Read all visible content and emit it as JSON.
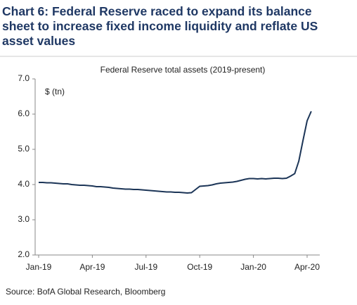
{
  "chart_data": {
    "type": "line",
    "title": [
      "Chart 6: Federal Reserve raced to expand its balance",
      "sheet to increase fixed income liquidity and reflate US",
      "asset values"
    ],
    "subtitle": "Federal Reserve total assets (2019-present)",
    "y_label": "$ (tn)",
    "source": "Source: BofA Global Research, Bloomberg",
    "categories": [
      "Jan-19",
      null,
      null,
      null,
      null,
      null,
      null,
      null,
      null,
      null,
      null,
      null,
      null,
      "Apr-19",
      null,
      null,
      null,
      null,
      null,
      null,
      null,
      null,
      null,
      null,
      null,
      null,
      "Jul-19",
      null,
      null,
      null,
      null,
      null,
      null,
      null,
      null,
      null,
      null,
      null,
      null,
      "Oct-19",
      null,
      null,
      null,
      null,
      null,
      null,
      null,
      null,
      null,
      null,
      null,
      null,
      "Jan-20",
      null,
      null,
      null,
      null,
      null,
      null,
      null,
      null,
      null,
      null,
      null,
      null,
      "Apr-20",
      null
    ],
    "series": [
      {
        "name": "Federal Reserve total assets",
        "color": "#1c3557",
        "values": [
          4.06,
          4.06,
          4.05,
          4.05,
          4.04,
          4.03,
          4.02,
          4.02,
          4.0,
          3.99,
          3.98,
          3.98,
          3.97,
          3.96,
          3.94,
          3.94,
          3.93,
          3.92,
          3.9,
          3.89,
          3.88,
          3.87,
          3.87,
          3.86,
          3.86,
          3.85,
          3.84,
          3.83,
          3.82,
          3.81,
          3.8,
          3.79,
          3.79,
          3.78,
          3.78,
          3.77,
          3.76,
          3.77,
          3.86,
          3.95,
          3.96,
          3.97,
          3.99,
          4.02,
          4.04,
          4.05,
          4.06,
          4.07,
          4.09,
          4.12,
          4.15,
          4.17,
          4.17,
          4.16,
          4.17,
          4.16,
          4.17,
          4.18,
          4.18,
          4.17,
          4.18,
          4.24,
          4.31,
          4.67,
          5.25,
          5.81,
          6.08
        ]
      }
    ],
    "ylim": [
      2,
      7
    ],
    "yticks": [
      {
        "value": 2,
        "label": "2.0"
      },
      {
        "value": 3,
        "label": "3.0"
      },
      {
        "value": 4,
        "label": "4.0"
      },
      {
        "value": 5,
        "label": "5.0"
      },
      {
        "value": 6,
        "label": "6.0"
      },
      {
        "value": 7,
        "label": "7.0"
      }
    ],
    "grid": false
  }
}
